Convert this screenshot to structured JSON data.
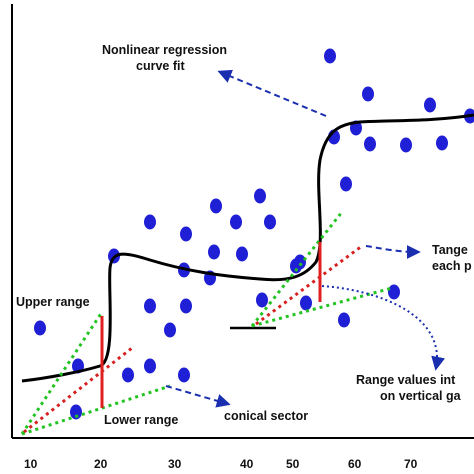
{
  "labels": {
    "nonlinear_line1": "Nonlinear regression",
    "nonlinear_line2": "curve fit",
    "tangent_line1": "Tange",
    "tangent_line2": "each p",
    "upper_range": "Upper range",
    "lower_range": "Lower range",
    "conical_sector": "conical sector",
    "range_values_line1": "Range  values int",
    "range_values_line2": "on vertical ga"
  },
  "x_ticks": [
    "10",
    "20",
    "30",
    "40",
    "50",
    "60",
    "70"
  ],
  "colors": {
    "dot": "#1f1fd6",
    "curve": "#000000",
    "range_bar": "#e02020",
    "tangent": "#d62020",
    "cone": "#22c422",
    "arrow": "#1a2fb0",
    "axis": "#000000"
  }
}
